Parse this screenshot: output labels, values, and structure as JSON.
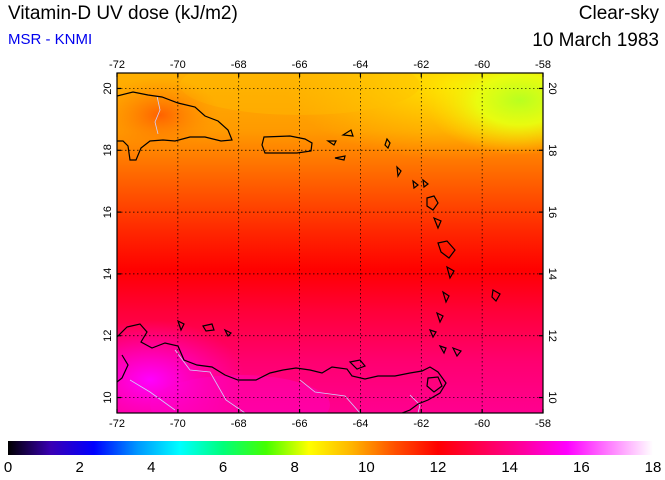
{
  "header": {
    "title": "Vitamin-D UV dose (kJ/m2)",
    "subtitle": "MSR - KNMI",
    "condition": "Clear-sky",
    "date": "10 March 1983"
  },
  "map": {
    "lon_range": [
      -72,
      -58
    ],
    "lat_range": [
      9.5,
      20.5
    ],
    "lon_ticks": [
      "-72",
      "-70",
      "-68",
      "-66",
      "-64",
      "-62",
      "-60",
      "-58"
    ],
    "lat_ticks": [
      "10",
      "12",
      "14",
      "16",
      "18",
      "20"
    ]
  },
  "colorbar": {
    "labels": [
      "0",
      "2",
      "4",
      "6",
      "8",
      "10",
      "12",
      "14",
      "16",
      "18"
    ],
    "min": 0,
    "max": 18,
    "colors": [
      "#000000",
      "#3a00b4",
      "#0000ff",
      "#0096ff",
      "#00ffff",
      "#00ff7a",
      "#44ff00",
      "#ffff00",
      "#ffb400",
      "#ff5000",
      "#ff0000",
      "#ff0050",
      "#ff00a0",
      "#ff00ff",
      "#ff80ff",
      "#ffffff"
    ]
  }
}
